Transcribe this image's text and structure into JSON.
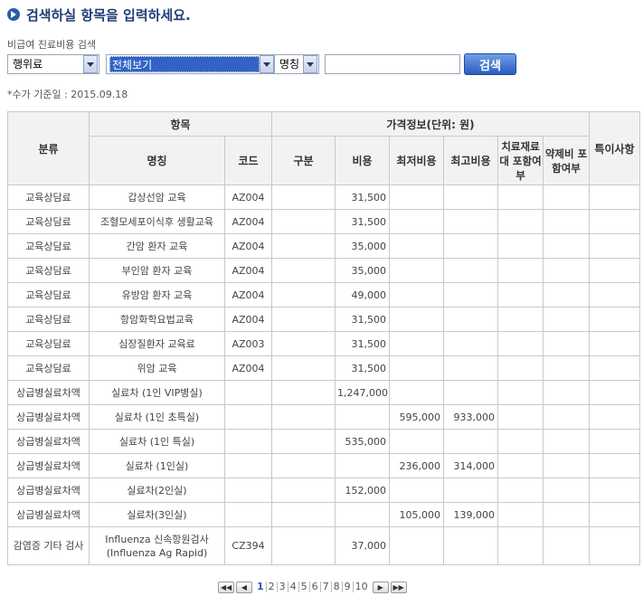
{
  "header": {
    "title": "검색하실 항목을 입력하세요."
  },
  "search": {
    "label": "비급여 진료비용 검색",
    "category_select": "행위료",
    "item_select": "전체보기",
    "field_select": "명칭",
    "query": "",
    "button_label": "검색"
  },
  "note": "*수가 기준일 : 2015.09.18",
  "table": {
    "headers": {
      "category": "분류",
      "item": "항목",
      "price_info": "가격정보(단위: 원)",
      "special": "특이사항",
      "name": "명칭",
      "code": "코드",
      "division": "구분",
      "cost": "비용",
      "min_cost": "최저비용",
      "max_cost": "최고비용",
      "material_included": "치료재료대 포함여부",
      "drug_included": "약제비 포함여부"
    },
    "rows": [
      {
        "category": "교육상담료",
        "name": "갑상선암 교육",
        "code": "AZ004",
        "division": "",
        "cost": "31,500",
        "min": "",
        "max": ""
      },
      {
        "category": "교육상담료",
        "name": "조혈모세포이식후 생활교육",
        "code": "AZ004",
        "division": "",
        "cost": "31,500",
        "min": "",
        "max": ""
      },
      {
        "category": "교육상담료",
        "name": "간암 환자 교육",
        "code": "AZ004",
        "division": "",
        "cost": "35,000",
        "min": "",
        "max": ""
      },
      {
        "category": "교육상담료",
        "name": "부인암 환자 교육",
        "code": "AZ004",
        "division": "",
        "cost": "35,000",
        "min": "",
        "max": ""
      },
      {
        "category": "교육상담료",
        "name": "유방암 환자 교육",
        "code": "AZ004",
        "division": "",
        "cost": "49,000",
        "min": "",
        "max": ""
      },
      {
        "category": "교육상담료",
        "name": "항암화학요법교육",
        "code": "AZ004",
        "division": "",
        "cost": "31,500",
        "min": "",
        "max": ""
      },
      {
        "category": "교육상담료",
        "name": "심장질환자 교육료",
        "code": "AZ003",
        "division": "",
        "cost": "31,500",
        "min": "",
        "max": ""
      },
      {
        "category": "교육상담료",
        "name": "위암 교육",
        "code": "AZ004",
        "division": "",
        "cost": "31,500",
        "min": "",
        "max": ""
      },
      {
        "category": "상급병실료차액",
        "name": "실료차 (1인 VIP병실)",
        "code": "",
        "division": "",
        "cost": "1,247,000",
        "min": "",
        "max": ""
      },
      {
        "category": "상급병실료차액",
        "name": "실료차 (1인 초특실)",
        "code": "",
        "division": "",
        "cost": "",
        "min": "595,000",
        "max": "933,000"
      },
      {
        "category": "상급병실료차액",
        "name": "실료차 (1인 특실)",
        "code": "",
        "division": "",
        "cost": "535,000",
        "min": "",
        "max": ""
      },
      {
        "category": "상급병실료차액",
        "name": "실료차 (1인실)",
        "code": "",
        "division": "",
        "cost": "",
        "min": "236,000",
        "max": "314,000"
      },
      {
        "category": "상급병실료차액",
        "name": "실료차(2인실)",
        "code": "",
        "division": "",
        "cost": "152,000",
        "min": "",
        "max": ""
      },
      {
        "category": "상급병실료차액",
        "name": "실료차(3인실)",
        "code": "",
        "division": "",
        "cost": "",
        "min": "105,000",
        "max": "139,000"
      },
      {
        "category": "감염증 기타 검사",
        "name": "Influenza 신속항원검사 (Influenza Ag Rapid)",
        "code": "CZ394",
        "division": "",
        "cost": "37,000",
        "min": "",
        "max": ""
      }
    ]
  },
  "pager": {
    "first": "◀◀",
    "prev": "◀",
    "next": "▶",
    "last": "▶▶",
    "current": "1",
    "pages": [
      "1",
      "2",
      "3",
      "4",
      "5",
      "6",
      "7",
      "8",
      "9",
      "10"
    ]
  }
}
